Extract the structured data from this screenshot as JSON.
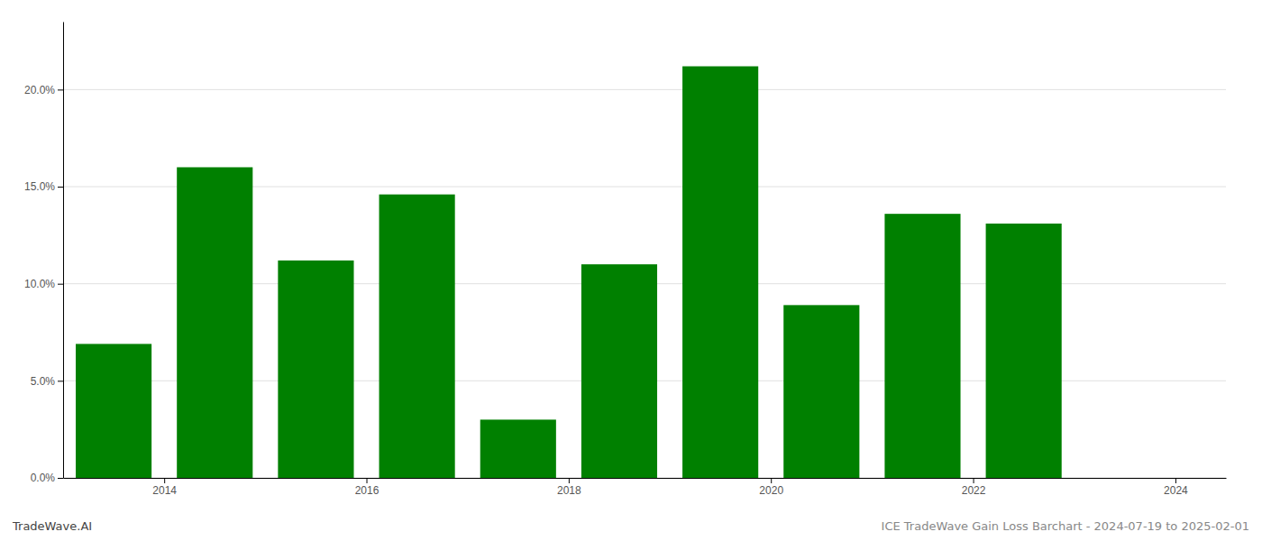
{
  "chart_data": {
    "type": "bar",
    "x": [
      2013.5,
      2014.5,
      2015.5,
      2016.5,
      2017.5,
      2018.5,
      2019.5,
      2020.5,
      2021.5,
      2022.5
    ],
    "values": [
      0.069,
      0.16,
      0.112,
      0.146,
      0.03,
      0.11,
      0.212,
      0.089,
      0.136,
      0.131
    ],
    "color": "#008000",
    "xlim": [
      2013.0,
      2024.5
    ],
    "xticks": [
      2014,
      2016,
      2018,
      2020,
      2022,
      2024
    ],
    "ylim": [
      0,
      0.235
    ],
    "yticks": [
      {
        "value": 0.0,
        "label": "0.0%"
      },
      {
        "value": 0.05,
        "label": "5.0%"
      },
      {
        "value": 0.1,
        "label": "10.0%"
      },
      {
        "value": 0.15,
        "label": "15.0%"
      },
      {
        "value": 0.2,
        "label": "20.0%"
      }
    ],
    "grid": true,
    "annotations": [
      "TradeWave.AI",
      "ICE TradeWave Gain Loss Barchart - 2024-07-19 to 2025-02-01"
    ]
  }
}
